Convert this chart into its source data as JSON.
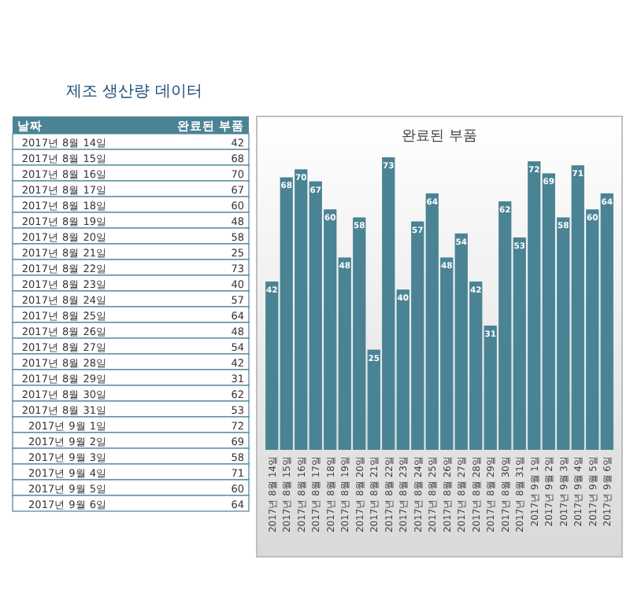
{
  "chart_data": [
    {
      "type": "other",
      "title": "제조 생산량 데이터",
      "xlabel": "날짜",
      "categories": [
        "2017년 8월 14일",
        "2017년 8월 15일",
        "2017년 8월 16일",
        "2017년 8월 17일",
        "2017년 8월 18일",
        "2017년 8월 19일",
        "2017년 8월 20일",
        "2017년 8월 21일",
        "2017년 8월 22일",
        "2017년 8월 23일",
        "2017년 8월 24일",
        "2017년 8월 25일",
        "2017년 8월 26일",
        "2017년 8월 27일",
        "2017년 8월 28일",
        "2017년 8월 29일",
        "2017년 8월 30일",
        "2017년 8월 31일",
        "2017년 9월 1일",
        "2017년 9월 2일",
        "2017년 9월 3일",
        "2017년 9월 4일",
        "2017년 9월 5일",
        "2017년 9월 6일"
      ],
      "series": [
        {
          "name": "완료된 부품",
          "color": "#4a8394",
          "values": [
            42,
            68,
            70,
            67,
            60,
            48,
            58,
            25,
            73,
            40,
            57,
            64,
            48,
            54,
            42,
            31,
            62,
            53,
            72,
            69,
            58,
            71,
            60,
            64
          ]
        }
      ],
      "data_labels": true
    },
    {
      "type": "bar",
      "title": "완료된 부품",
      "categories": [
        "2017년 8월 14일",
        "2017년 8월 15일",
        "2017년 8월 16일",
        "2017년 8월 17일",
        "2017년 8월 18일",
        "2017년 8월 19일",
        "2017년 8월 20일",
        "2017년 8월 21일",
        "2017년 8월 22일",
        "2017년 8월 23일",
        "2017년 8월 24일",
        "2017년 8월 25일",
        "2017년 8월 26일",
        "2017년 8월 27일",
        "2017년 8월 28일",
        "2017년 8월 29일",
        "2017년 8월 30일",
        "2017년 8월 31일",
        "2017년 9월 1일",
        "2017년 9월 2일",
        "2017년 9월 3일",
        "2017년 9월 4일",
        "2017년 9월 5일",
        "2017년 9월 6일"
      ],
      "series": [
        {
          "color": "#4a8394",
          "values": [
            42,
            68,
            70,
            67,
            60,
            48,
            58,
            25,
            73,
            40,
            57,
            64,
            48,
            54,
            42,
            31,
            62,
            53,
            72,
            69,
            58,
            71,
            60,
            64
          ]
        }
      ],
      "data_labels": true
    }
  ]
}
